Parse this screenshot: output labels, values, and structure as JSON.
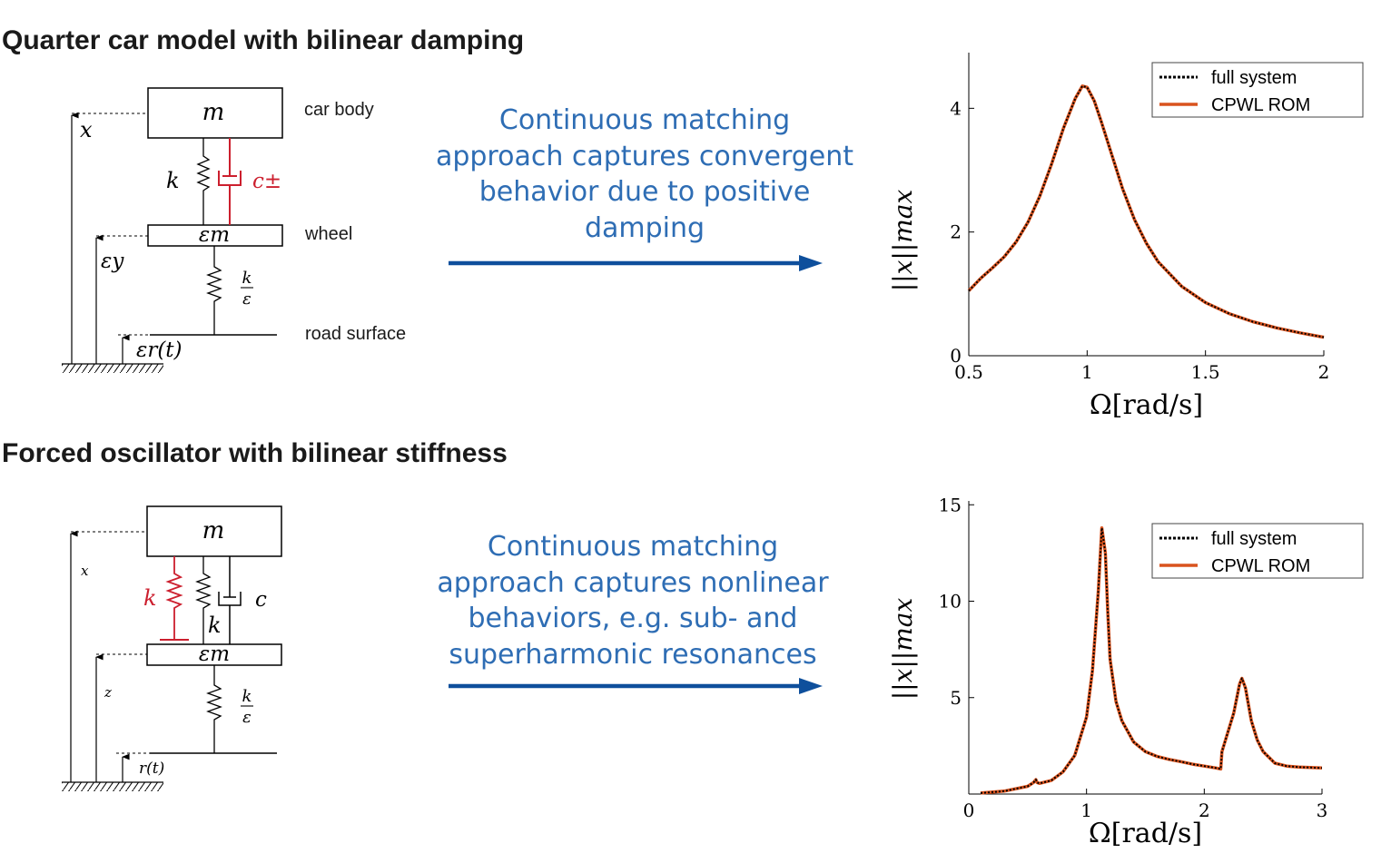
{
  "panel_top": {
    "title": "Quarter car model with bilinear damping",
    "labels": {
      "mass": "m",
      "x": "x",
      "spring": "k",
      "damper": "c±",
      "wheel_mass": "εm",
      "eps_y": "εy",
      "tire_k_num": "k",
      "tire_k_den": "ε",
      "road_input": "εr(t)",
      "car_body": "car body",
      "wheel": "wheel",
      "road_surface": "road surface"
    },
    "caption": [
      "Continuous matching",
      "approach captures convergent",
      "behavior due to positive",
      "damping"
    ]
  },
  "panel_bottom": {
    "title": "Forced oscillator with bilinear stiffness",
    "labels": {
      "mass": "m",
      "x": "x",
      "spring_red": "k",
      "spring": "k",
      "damper": "c",
      "wheel_mass": "εm",
      "z": "z",
      "tire_k_num": "k",
      "tire_k_den": "ε",
      "road_input": "r(t)"
    },
    "caption": [
      "Continuous matching",
      "approach captures nonlinear",
      "behaviors, e.g. sub- and",
      "superharmonic resonances"
    ]
  },
  "colors": {
    "caption": "#2e6db4",
    "arrow": "#0e4f9c",
    "bilinear_element": "#cc1f2e",
    "full_system": "#000000",
    "rom": "#d9531e"
  },
  "chart_data": [
    {
      "type": "line",
      "xlabel": "Ω[rad/s]",
      "ylabel": "||x||max",
      "xlim": [
        0.5,
        2
      ],
      "ylim": [
        0,
        4.9
      ],
      "xticks": [
        0.5,
        1,
        1.5,
        2
      ],
      "xtick_labels": [
        "0.5",
        "1",
        "1.5",
        "2"
      ],
      "yticks": [
        0,
        2,
        4
      ],
      "ytick_labels": [
        "0",
        "2",
        "4"
      ],
      "grid": false,
      "legend_position": "top-right",
      "x": [
        0.5,
        0.55,
        0.6,
        0.65,
        0.7,
        0.75,
        0.8,
        0.85,
        0.9,
        0.95,
        0.98,
        1.0,
        1.03,
        1.06,
        1.1,
        1.15,
        1.2,
        1.25,
        1.3,
        1.4,
        1.5,
        1.6,
        1.7,
        1.8,
        1.9,
        2.0
      ],
      "series": [
        {
          "name": "full system",
          "style": "dotted",
          "values": [
            1.05,
            1.25,
            1.42,
            1.6,
            1.84,
            2.16,
            2.58,
            3.1,
            3.68,
            4.16,
            4.36,
            4.34,
            4.12,
            3.78,
            3.3,
            2.7,
            2.2,
            1.82,
            1.52,
            1.12,
            0.86,
            0.68,
            0.55,
            0.45,
            0.37,
            0.3
          ]
        },
        {
          "name": "CPWL ROM",
          "style": "solid",
          "values": [
            1.05,
            1.25,
            1.42,
            1.6,
            1.84,
            2.16,
            2.58,
            3.1,
            3.68,
            4.16,
            4.36,
            4.34,
            4.12,
            3.78,
            3.3,
            2.7,
            2.2,
            1.82,
            1.52,
            1.12,
            0.86,
            0.68,
            0.55,
            0.45,
            0.37,
            0.3
          ]
        }
      ]
    },
    {
      "type": "line",
      "xlabel": "Ω[rad/s]",
      "ylabel": "||x||max",
      "xlim": [
        0,
        3
      ],
      "ylim": [
        0,
        15.2
      ],
      "xticks": [
        0,
        1,
        2,
        3
      ],
      "xtick_labels": [
        "0",
        "1",
        "2",
        "3"
      ],
      "yticks": [
        5,
        10,
        15
      ],
      "ytick_labels": [
        "5",
        "10",
        "15"
      ],
      "grid": false,
      "legend_position": "top-right",
      "x": [
        0.1,
        0.3,
        0.5,
        0.55,
        0.57,
        0.58,
        0.6,
        0.7,
        0.8,
        0.9,
        1.0,
        1.05,
        1.1,
        1.13,
        1.16,
        1.18,
        1.2,
        1.25,
        1.3,
        1.4,
        1.5,
        1.6,
        1.7,
        1.8,
        1.9,
        2.0,
        2.1,
        2.14,
        2.15,
        2.2,
        2.25,
        2.3,
        2.32,
        2.35,
        2.4,
        2.45,
        2.5,
        2.6,
        2.7,
        2.8,
        3.0
      ],
      "series": [
        {
          "name": "full system",
          "style": "dotted",
          "values": [
            0.05,
            0.15,
            0.4,
            0.6,
            0.75,
            0.6,
            0.55,
            0.7,
            1.15,
            2.0,
            4.0,
            6.4,
            10.5,
            13.8,
            12.5,
            9.5,
            7.0,
            4.8,
            3.8,
            2.7,
            2.2,
            1.95,
            1.8,
            1.68,
            1.55,
            1.45,
            1.35,
            1.3,
            2.2,
            3.2,
            4.2,
            5.7,
            6.0,
            5.5,
            3.8,
            2.8,
            2.2,
            1.6,
            1.45,
            1.4,
            1.35
          ]
        },
        {
          "name": "CPWL ROM",
          "style": "solid",
          "values": [
            0.05,
            0.15,
            0.4,
            0.6,
            0.75,
            0.6,
            0.55,
            0.7,
            1.15,
            2.0,
            4.0,
            6.4,
            10.5,
            13.8,
            12.5,
            9.5,
            7.0,
            4.8,
            3.8,
            2.7,
            2.2,
            1.95,
            1.8,
            1.68,
            1.55,
            1.45,
            1.35,
            1.3,
            2.2,
            3.2,
            4.2,
            5.7,
            6.0,
            5.5,
            3.8,
            2.8,
            2.2,
            1.6,
            1.45,
            1.4,
            1.35
          ]
        }
      ]
    }
  ]
}
